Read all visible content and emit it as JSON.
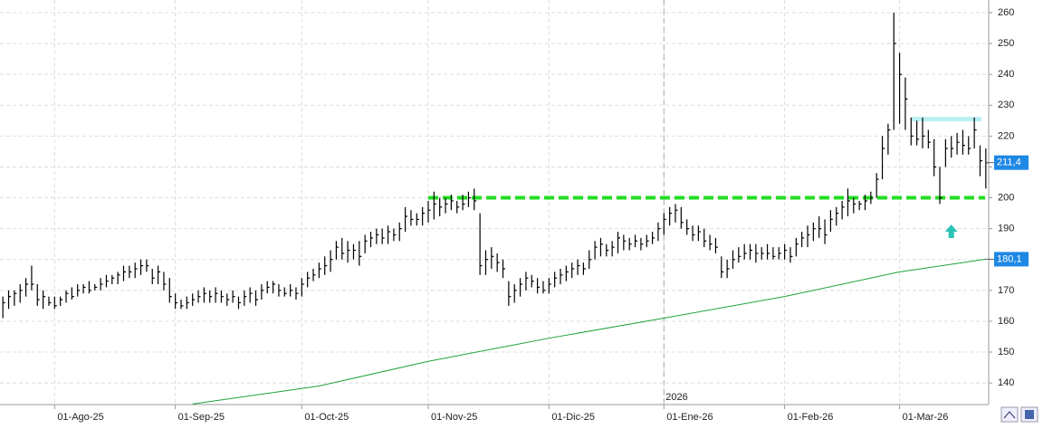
{
  "chart_data": {
    "type": "hlc",
    "categories": [
      null,
      null,
      null,
      null,
      null,
      null,
      null,
      null,
      null,
      "01-Ago-25",
      null,
      null,
      null,
      null,
      null,
      null,
      null,
      null,
      null,
      null,
      null,
      null,
      null,
      null,
      null,
      null,
      null,
      null,
      null,
      null,
      "01-Sep-25",
      null,
      null,
      null,
      null,
      null,
      null,
      null,
      null,
      null,
      null,
      null,
      null,
      null,
      null,
      null,
      null,
      null,
      null,
      null,
      null,
      null,
      "01-Oct-25",
      null,
      null,
      null,
      null,
      null,
      null,
      null,
      null,
      null,
      null,
      null,
      null,
      null,
      null,
      null,
      null,
      null,
      null,
      null,
      null,
      null,
      "01-Nov-25",
      null,
      null,
      null,
      null,
      null,
      null,
      null,
      null,
      null,
      null,
      null,
      null,
      null,
      null,
      null,
      null,
      null,
      null,
      null,
      null,
      "01-Dic-25",
      null,
      null,
      null,
      null,
      null,
      null,
      null,
      null,
      null,
      null,
      null,
      null,
      null,
      null,
      null,
      null,
      null,
      null,
      null,
      "01-Ene-26",
      null,
      null,
      null,
      null,
      null,
      null,
      null,
      null,
      null,
      null,
      null,
      null,
      null,
      null,
      null,
      null,
      null,
      null,
      null,
      null,
      "01-Feb-26",
      null,
      null,
      null,
      null,
      null,
      null,
      null,
      null,
      null,
      null,
      null,
      null,
      null,
      null,
      null,
      null,
      null,
      null,
      null,
      "01-Mar-26",
      null,
      null,
      null,
      null,
      null,
      null,
      null,
      null,
      null,
      null,
      null,
      null,
      null,
      null,
      null
    ],
    "high": [
      168,
      170,
      170,
      172,
      174,
      178,
      172,
      170,
      168,
      168,
      168,
      170,
      171,
      172,
      172,
      173,
      172,
      174,
      175,
      175,
      176,
      178,
      178,
      179,
      180,
      180,
      177,
      178,
      176,
      174,
      169,
      167,
      168,
      169,
      170,
      171,
      170,
      171,
      170,
      169,
      170,
      168,
      170,
      171,
      170,
      172,
      173,
      173,
      172,
      171,
      172,
      171,
      174,
      176,
      177,
      179,
      181,
      183,
      186,
      187,
      186,
      185,
      186,
      188,
      189,
      190,
      190,
      191,
      190,
      192,
      197,
      196,
      195,
      197,
      199,
      202,
      200,
      200,
      201,
      199,
      201,
      202,
      203,
      195,
      183,
      184,
      182,
      180,
      173,
      172,
      174,
      176,
      175,
      174,
      173,
      174,
      176,
      177,
      178,
      179,
      180,
      179,
      183,
      186,
      187,
      185,
      186,
      189,
      188,
      187,
      188,
      187,
      188,
      189,
      192,
      195,
      197,
      198,
      197,
      193,
      191,
      191,
      190,
      188,
      187,
      181,
      180,
      183,
      184,
      185,
      185,
      185,
      184,
      185,
      184,
      184,
      185,
      184,
      187,
      189,
      191,
      192,
      194,
      193,
      196,
      197,
      199,
      203,
      200,
      199,
      201,
      202,
      208,
      220,
      224,
      260,
      247,
      239,
      226,
      225,
      226,
      222,
      219,
      210,
      219,
      220,
      221,
      222,
      220,
      226,
      217,
      216
    ],
    "low": [
      161,
      164,
      165,
      166,
      168,
      170,
      165,
      164,
      165,
      164,
      165,
      166,
      167,
      168,
      169,
      169,
      170,
      170,
      171,
      172,
      172,
      173,
      174,
      174,
      175,
      176,
      172,
      172,
      170,
      166,
      164,
      164,
      164,
      165,
      166,
      166,
      166,
      166,
      166,
      165,
      166,
      164,
      165,
      166,
      165,
      167,
      169,
      169,
      168,
      168,
      168,
      167,
      168,
      171,
      173,
      174,
      175,
      176,
      180,
      180,
      179,
      180,
      178,
      182,
      184,
      185,
      185,
      185,
      186,
      186,
      189,
      191,
      191,
      191,
      192,
      193,
      194,
      195,
      196,
      195,
      196,
      197,
      196,
      175,
      175,
      177,
      176,
      174,
      165,
      166,
      168,
      170,
      171,
      169,
      169,
      169,
      171,
      172,
      173,
      174,
      175,
      175,
      177,
      180,
      181,
      181,
      181,
      182,
      183,
      183,
      184,
      183,
      184,
      185,
      186,
      188,
      191,
      192,
      190,
      188,
      186,
      186,
      184,
      183,
      182,
      174,
      174,
      177,
      179,
      180,
      180,
      179,
      180,
      180,
      180,
      180,
      180,
      179,
      181,
      184,
      184,
      186,
      187,
      185,
      189,
      191,
      193,
      194,
      195,
      196,
      196,
      198,
      200,
      206,
      214,
      222,
      224,
      222,
      217,
      217,
      216,
      216,
      207,
      198,
      210,
      213,
      214,
      214,
      214,
      216,
      207,
      203
    ],
    "close": [
      166,
      168,
      169,
      170,
      172,
      172,
      167,
      168,
      166,
      165,
      167,
      169,
      168,
      170,
      171,
      170,
      171,
      172,
      173,
      174,
      175,
      176,
      176,
      177,
      178,
      178,
      174,
      176,
      172,
      168,
      166,
      165,
      166,
      167,
      168,
      169,
      168,
      169,
      168,
      167,
      168,
      166,
      168,
      169,
      167,
      170,
      171,
      172,
      170,
      169,
      170,
      169,
      172,
      174,
      175,
      177,
      178,
      180,
      184,
      182,
      183,
      183,
      181,
      186,
      187,
      188,
      187,
      189,
      188,
      190,
      194,
      193,
      193,
      195,
      196,
      198,
      197,
      198,
      199,
      197,
      198,
      200,
      199,
      178,
      180,
      181,
      179,
      177,
      168,
      170,
      172,
      174,
      173,
      171,
      170,
      172,
      174,
      175,
      176,
      177,
      178,
      177,
      180,
      184,
      185,
      183,
      184,
      187,
      186,
      185,
      186,
      185,
      186,
      187,
      190,
      193,
      195,
      196,
      192,
      190,
      188,
      189,
      186,
      185,
      184,
      176,
      177,
      180,
      181,
      182,
      183,
      182,
      182,
      182,
      181,
      182,
      183,
      181,
      185,
      187,
      188,
      190,
      190,
      188,
      193,
      195,
      197,
      199,
      198,
      198,
      199,
      200,
      206,
      216,
      222,
      250,
      240,
      232,
      220,
      219,
      220,
      218,
      210,
      200,
      216,
      216,
      218,
      217,
      216,
      222,
      212,
      211.4
    ],
    "color": "#000000",
    "ma": {
      "color": "#1fa33a",
      "x": [
        33,
        55,
        74,
        95,
        115,
        136,
        156,
        171
      ],
      "values": [
        133.2,
        139,
        147,
        154.5,
        161,
        168,
        176,
        180.1
      ]
    },
    "support": {
      "value": 200,
      "start": 74,
      "color": "#22dd22"
    },
    "resistance": {
      "value": 225.5,
      "start": 158,
      "color": "#b8f0f4"
    },
    "arrow": {
      "x": 165,
      "value": 189,
      "color": "#2bc3b5"
    },
    "year_marker": {
      "index": 115,
      "label": "2026"
    },
    "price_labels": [
      {
        "value": 211.4,
        "label": "211,4",
        "color": "#1e88e5"
      },
      {
        "value": 180.1,
        "label": "180,1",
        "color": "#1e88e5"
      }
    ],
    "ylim": [
      133,
      264.1
    ],
    "yticks": [
      140,
      150,
      160,
      170,
      180,
      190,
      200,
      210,
      220,
      230,
      240,
      250,
      260
    ],
    "grid": true
  }
}
